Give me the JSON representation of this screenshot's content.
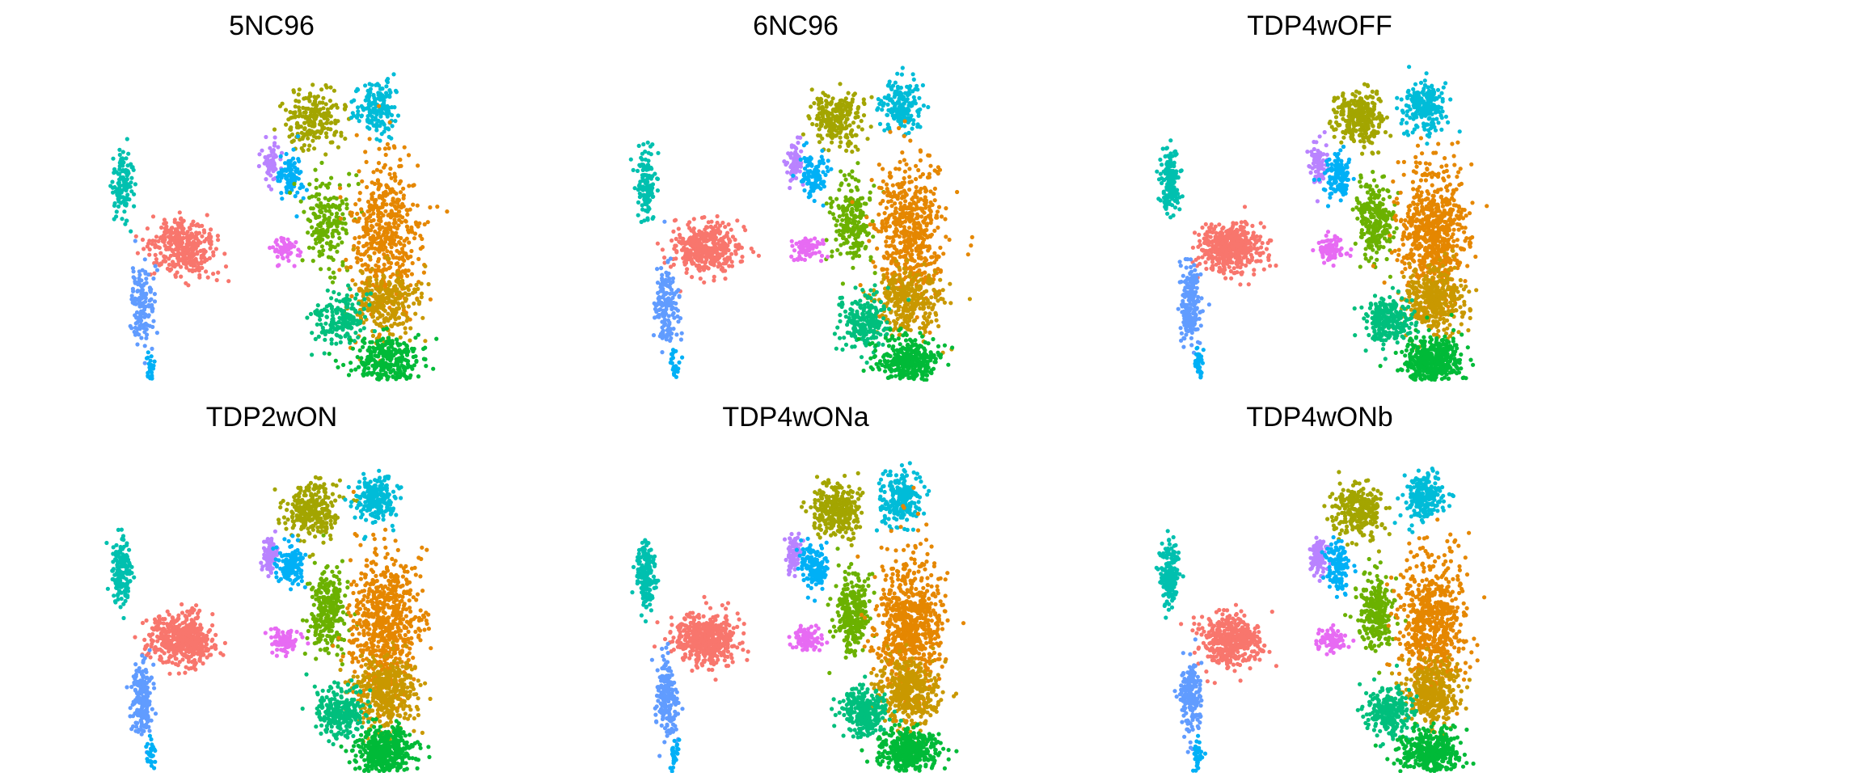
{
  "figure": {
    "background": "#ffffff"
  },
  "chart_data": {
    "type": "scatter",
    "grid": false,
    "legend": "none",
    "axes_visible": false,
    "cluster_palette": [
      "#f8766d",
      "#e58700",
      "#c99800",
      "#a3a500",
      "#6bb100",
      "#00ba38",
      "#00bf7d",
      "#00c0af",
      "#00bcd8",
      "#00b0f6",
      "#619cff",
      "#b983ff",
      "#e76bf3"
    ],
    "panels": [
      {
        "title": "5NC96"
      },
      {
        "title": "6NC96"
      },
      {
        "title": "TDP4wOFF"
      },
      {
        "title": "TDP2wON"
      },
      {
        "title": "TDP4wONa"
      },
      {
        "title": "TDP4wONb"
      }
    ]
  }
}
